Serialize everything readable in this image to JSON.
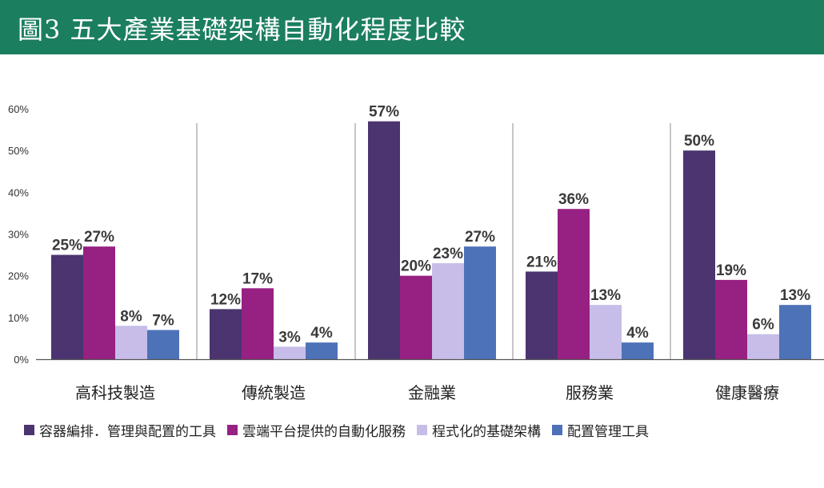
{
  "header": {
    "title": "圖3 五大產業基礎架構自動化程度比較",
    "background": "#1b7e5f"
  },
  "chart_data": {
    "type": "bar",
    "categories": [
      "高科技製造",
      "傳統製造",
      "金融業",
      "服務業",
      "健康醫療"
    ],
    "series": [
      {
        "name": "容器編排．管理與配置的工具",
        "color": "#4b3470",
        "values": [
          25,
          12,
          57,
          21,
          50
        ]
      },
      {
        "name": "雲端平台提供的自動化服務",
        "color": "#962182",
        "values": [
          27,
          17,
          20,
          36,
          19
        ]
      },
      {
        "name": "程式化的基礎架構",
        "color": "#c7bde8",
        "values": [
          8,
          3,
          23,
          13,
          6
        ]
      },
      {
        "name": "配置管理工具",
        "color": "#4e72b8",
        "values": [
          7,
          4,
          27,
          4,
          13
        ]
      }
    ],
    "value_suffix": "%",
    "ylim": [
      0,
      60
    ],
    "yticks": [
      0,
      10,
      20,
      30,
      40,
      50,
      60
    ],
    "ytick_labels": [
      "0%",
      "10%",
      "20%",
      "30%",
      "40%",
      "50%",
      "60%"
    ],
    "grid": false,
    "category_separators": true,
    "legend_position": "bottom",
    "title": "",
    "xlabel": "",
    "ylabel": ""
  }
}
